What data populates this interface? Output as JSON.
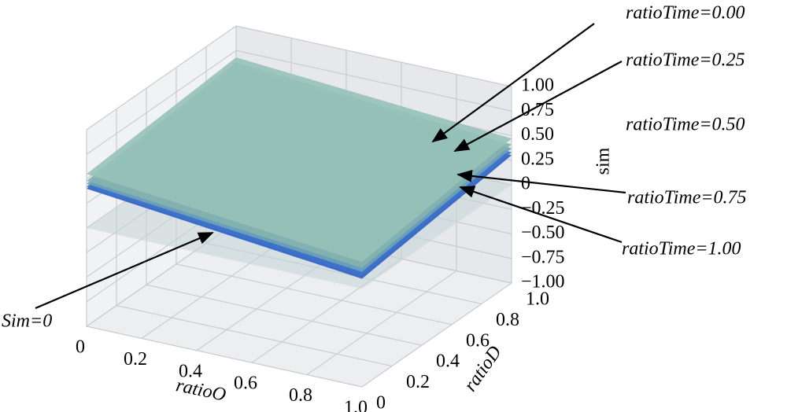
{
  "chart_data": {
    "type": "surface3d",
    "xlabel": "ratioO",
    "ylabel": "ratioD",
    "zlabel": "sim",
    "x": [
      0,
      1
    ],
    "y": [
      0,
      1
    ],
    "xlim": [
      0,
      1
    ],
    "ylim": [
      0,
      1
    ],
    "zlim": [
      -1,
      1
    ],
    "xticks": [
      0,
      0.2,
      0.4,
      0.6,
      0.8,
      {
        "value": 1,
        "label": "1.0"
      }
    ],
    "yticks": [
      0,
      0.2,
      0.4,
      0.6,
      0.8,
      {
        "value": 1,
        "label": "1.0"
      }
    ],
    "zticks": [
      {
        "value": -1,
        "label": "−1.00"
      },
      {
        "value": -0.75,
        "label": "−0.75"
      },
      {
        "value": -0.5,
        "label": "−0.50"
      },
      {
        "value": -0.25,
        "label": "−0.25"
      },
      0,
      {
        "value": 0.25,
        "label": "0.25"
      },
      {
        "value": 0.5,
        "label": "0.50"
      },
      {
        "value": 0.75,
        "label": "0.75"
      },
      {
        "value": 1,
        "label": "1.00"
      }
    ],
    "grid": true,
    "series": [
      {
        "name": "Sim=0",
        "color": "#c5d3d6",
        "values": [
          [
            0,
            0
          ],
          [
            0,
            0
          ]
        ]
      },
      {
        "name": "ratioTime=1.00",
        "color": "#2a5fc4",
        "values": [
          [
            0.4,
            0.55
          ],
          [
            0.1,
            0.3
          ]
        ]
      },
      {
        "name": "ratioTime=0.75",
        "color": "#3d74c9",
        "values": [
          [
            0.42,
            0.57
          ],
          [
            0.13,
            0.33
          ]
        ]
      },
      {
        "name": "ratioTime=0.50",
        "color": "#6fa3b8",
        "values": [
          [
            0.45,
            0.6
          ],
          [
            0.17,
            0.37
          ]
        ]
      },
      {
        "name": "ratioTime=0.25",
        "color": "#85b3ae",
        "values": [
          [
            0.48,
            0.63
          ],
          [
            0.21,
            0.41
          ]
        ]
      },
      {
        "name": "ratioTime=0.00",
        "color": "#97c2b9",
        "values": [
          [
            0.55,
            0.68
          ],
          [
            0.27,
            0.47
          ]
        ]
      }
    ]
  }
}
